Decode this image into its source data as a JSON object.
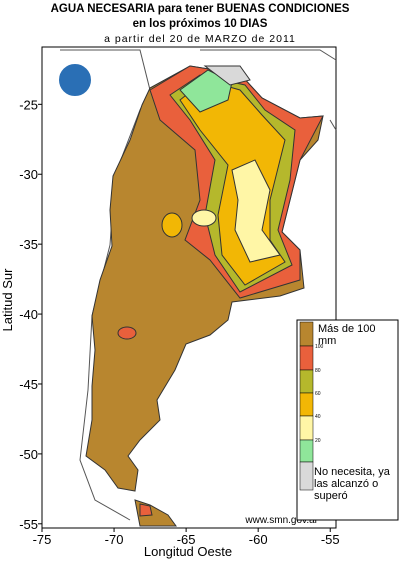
{
  "header": {
    "title": "AGUA NECESARIA para tener BUENAS CONDICIONES",
    "subtitle": "en los próximos 10 DIAS",
    "date_line": "a partir del 20 de MARZO de 2011"
  },
  "map": {
    "xlabel": "Longitud Oeste",
    "ylabel": "Latitud Sur",
    "xlim": [
      -75,
      -54.6
    ],
    "ylim": [
      -20.9,
      -55.3
    ],
    "xticks": [
      -75,
      -70,
      -65,
      -60,
      -55
    ],
    "yticks": [
      -25,
      -30,
      -35,
      -40,
      -45,
      -50,
      -55
    ]
  },
  "legend": {
    "top_label": "Más de 100 mm",
    "bottom_label": "No necesita, ya las alcanzó o superó",
    "levels": [
      100,
      80,
      60,
      40,
      20
    ],
    "colors": [
      "#b8862f",
      "#e9603c",
      "#b5b82c",
      "#f2b705",
      "#fff6a6",
      "#8fe69a",
      "#d9d9d9"
    ]
  },
  "footer": {
    "url": "www.smn.gov.ar"
  }
}
